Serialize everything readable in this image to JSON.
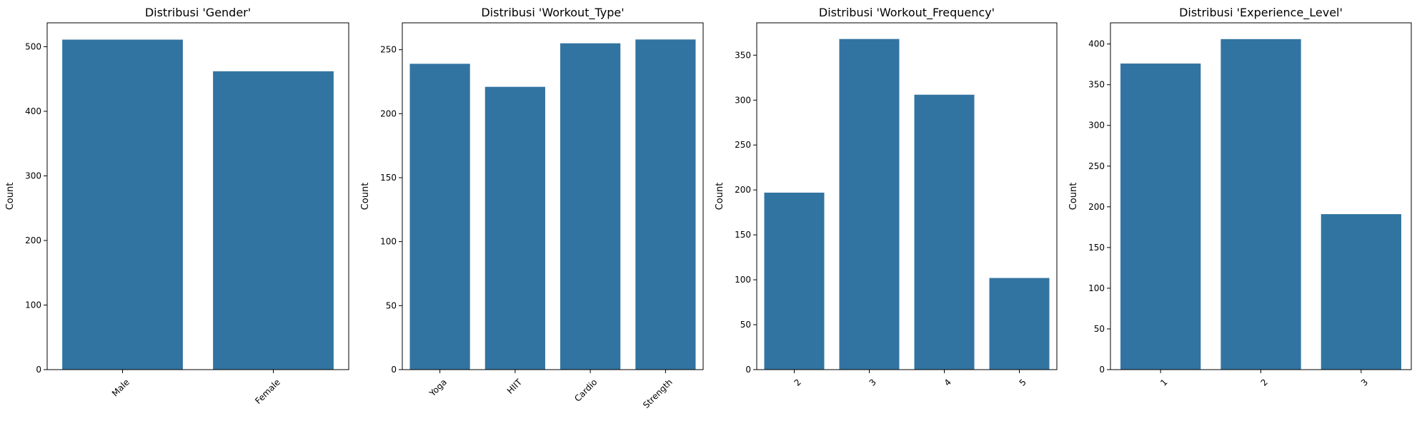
{
  "figure": {
    "bar_color": "#3274a1",
    "axes_color": "#000000"
  },
  "chart_data": [
    {
      "type": "bar",
      "title": "Distribusi 'Gender'",
      "xlabel": "",
      "ylabel": "Count",
      "categories": [
        "Male",
        "Female"
      ],
      "values": [
        511,
        462
      ],
      "ylim": [
        0,
        537
      ],
      "yticks": [
        0,
        100,
        200,
        300,
        400,
        500
      ],
      "xtick_rotation": 45,
      "grid": false
    },
    {
      "type": "bar",
      "title": "Distribusi 'Workout_Type'",
      "xlabel": "",
      "ylabel": "Count",
      "categories": [
        "Yoga",
        "HIIT",
        "Cardio",
        "Strength"
      ],
      "values": [
        239,
        221,
        255,
        258
      ],
      "ylim": [
        0,
        271
      ],
      "yticks": [
        0,
        50,
        100,
        150,
        200,
        250
      ],
      "xtick_rotation": 45,
      "grid": false
    },
    {
      "type": "bar",
      "title": "Distribusi 'Workout_Frequency'",
      "xlabel": "",
      "ylabel": "Count",
      "categories": [
        "2",
        "3",
        "4",
        "5"
      ],
      "values": [
        197,
        368,
        306,
        102
      ],
      "ylim": [
        0,
        386
      ],
      "yticks": [
        0,
        50,
        100,
        150,
        200,
        250,
        300,
        350
      ],
      "xtick_rotation": 45,
      "grid": false
    },
    {
      "type": "bar",
      "title": "Distribusi 'Experience_Level'",
      "xlabel": "",
      "ylabel": "Count",
      "categories": [
        "1",
        "2",
        "3"
      ],
      "values": [
        376,
        406,
        191
      ],
      "ylim": [
        0,
        426
      ],
      "yticks": [
        0,
        50,
        100,
        150,
        200,
        250,
        300,
        350,
        400
      ],
      "xtick_rotation": 45,
      "grid": false
    }
  ]
}
